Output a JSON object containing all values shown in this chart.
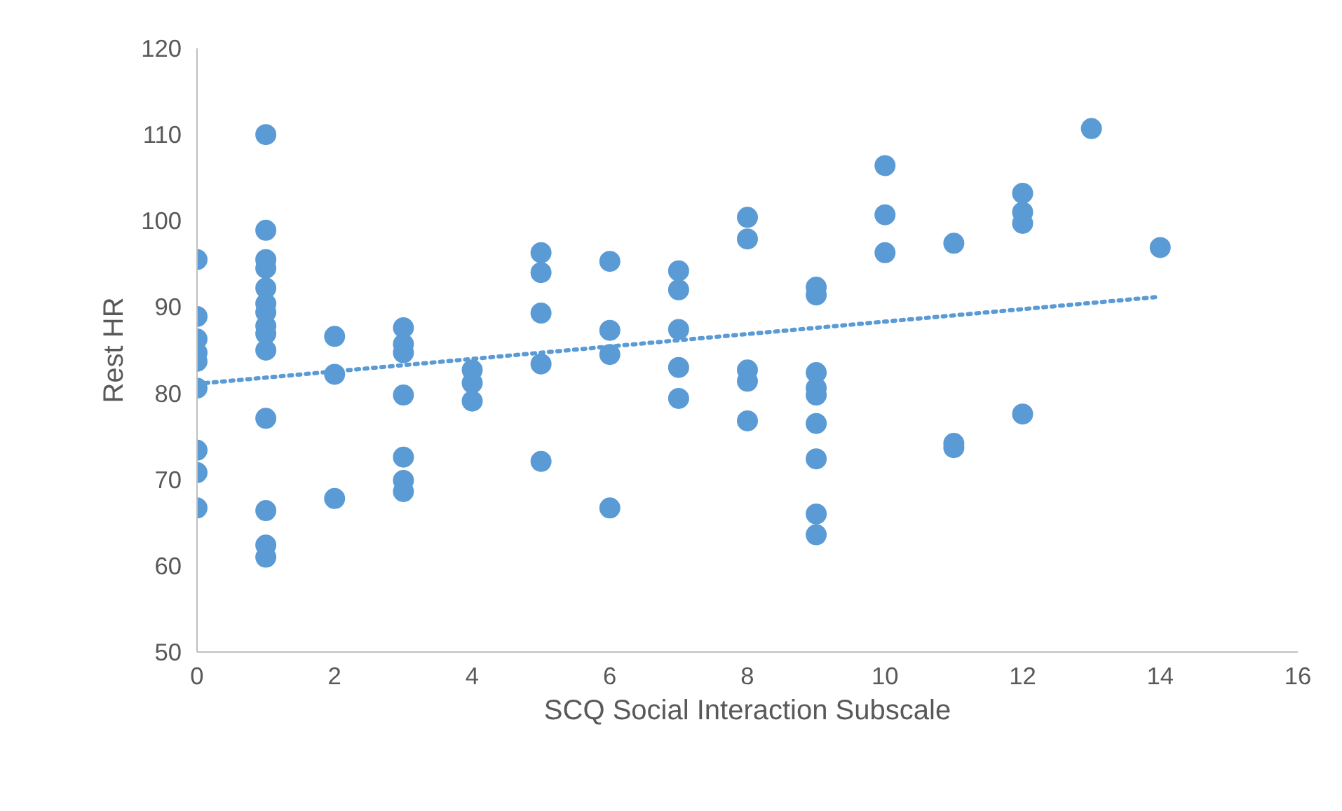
{
  "chart_data": {
    "type": "scatter",
    "xlabel": "SCQ Social Interaction Subscale",
    "ylabel": "Rest HR",
    "xlim": [
      0,
      16
    ],
    "xticks": [
      0,
      2,
      4,
      6,
      8,
      10,
      12,
      14,
      16
    ],
    "ylim": [
      50,
      120
    ],
    "yticks": [
      50,
      60,
      70,
      80,
      90,
      100,
      110,
      120
    ],
    "grid": false,
    "series": [
      {
        "color": "#5b9bd5",
        "marker": "circle",
        "x": [
          0,
          0,
          0,
          0,
          0,
          0,
          0,
          0,
          0,
          1,
          1,
          1,
          1,
          1,
          1,
          1,
          1,
          1,
          1,
          1,
          1,
          1,
          1,
          2,
          2,
          2,
          3,
          3,
          3,
          3,
          3,
          3,
          3,
          4,
          4,
          4,
          5,
          5,
          5,
          5,
          5,
          6,
          6,
          6,
          6,
          7,
          7,
          7,
          7,
          7,
          8,
          8,
          8,
          8,
          8,
          9,
          9,
          9,
          9,
          9,
          9,
          9,
          9,
          9,
          10,
          10,
          10,
          11,
          11,
          11,
          12,
          12,
          12,
          12,
          13,
          14
        ],
        "values": [
          95.5,
          88.9,
          86.3,
          84.7,
          83.7,
          80.6,
          73.4,
          70.8,
          66.7,
          110.0,
          98.9,
          95.5,
          94.5,
          92.2,
          90.4,
          89.4,
          87.8,
          86.9,
          85.0,
          77.1,
          66.4,
          62.4,
          61.0,
          86.6,
          82.2,
          67.8,
          87.6,
          85.7,
          84.7,
          79.8,
          72.6,
          69.9,
          68.6,
          82.7,
          81.2,
          79.1,
          96.3,
          94.0,
          89.3,
          83.4,
          72.1,
          95.3,
          87.3,
          84.5,
          66.7,
          94.2,
          92.0,
          87.4,
          83.0,
          79.4,
          100.4,
          97.9,
          82.7,
          81.4,
          76.8,
          92.3,
          91.4,
          82.4,
          80.6,
          79.8,
          76.5,
          72.4,
          66.0,
          63.6,
          106.4,
          100.7,
          96.3,
          97.4,
          74.2,
          73.7,
          103.2,
          101.0,
          99.7,
          77.6,
          110.7,
          96.9
        ]
      },
      {
        "type": "line",
        "color": "#5b9bd5",
        "line_style": "dotted",
        "marker": "none",
        "x": [
          0,
          14
        ],
        "values": [
          81.1,
          91.2
        ]
      }
    ]
  }
}
